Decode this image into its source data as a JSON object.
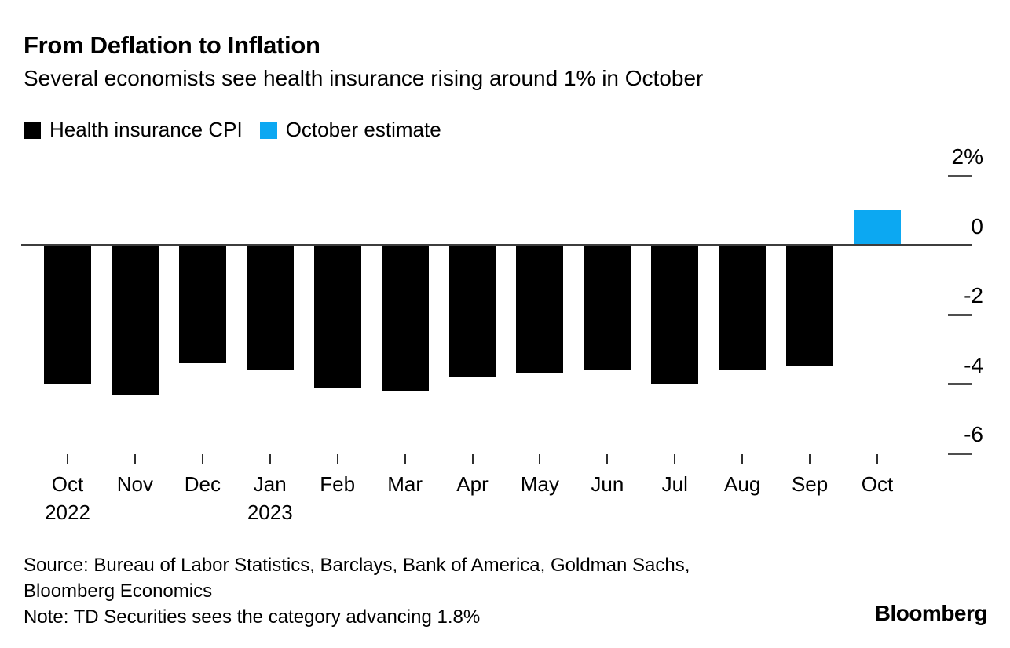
{
  "header": {
    "title": "From Deflation to Inflation",
    "subtitle": "Several economists see health insurance rising around 1% in October"
  },
  "legend": {
    "items": [
      {
        "label": "Health insurance CPI",
        "color": "#000000"
      },
      {
        "label": "October estimate",
        "color": "#0ca8f2"
      }
    ]
  },
  "chart_data": {
    "type": "bar",
    "unit": "percent change, month over month",
    "categories": [
      "Oct 2022",
      "Nov",
      "Dec",
      "Jan 2023",
      "Feb",
      "Mar",
      "Apr",
      "May",
      "Jun",
      "Jul",
      "Aug",
      "Sep",
      "Oct"
    ],
    "series": [
      {
        "name": "Health insurance CPI",
        "color": "#000000",
        "values": [
          -4.0,
          -4.3,
          -3.4,
          -3.6,
          -4.1,
          -4.2,
          -3.8,
          -3.7,
          -3.6,
          -4.0,
          -3.6,
          -3.5,
          null
        ]
      },
      {
        "name": "October estimate",
        "color": "#0ca8f2",
        "values": [
          null,
          null,
          null,
          null,
          null,
          null,
          null,
          null,
          null,
          null,
          null,
          null,
          1.0
        ]
      }
    ],
    "ylim": [
      -6.6,
      2.4
    ],
    "yticks": [
      {
        "label": "2%",
        "value": 2
      },
      {
        "label": "0",
        "value": 0
      },
      {
        "label": "-2",
        "value": -2
      },
      {
        "label": "-4",
        "value": -4
      },
      {
        "label": "-6",
        "value": -6
      }
    ],
    "x_axis": {
      "months": [
        "Oct",
        "Nov",
        "Dec",
        "Jan",
        "Feb",
        "Mar",
        "Apr",
        "May",
        "Jun",
        "Jul",
        "Aug",
        "Sep",
        "Oct"
      ],
      "year_labels": [
        {
          "index": 0,
          "label": "2022"
        },
        {
          "index": 3,
          "label": "2023"
        }
      ]
    },
    "grid": "off",
    "legend_position": "top-left",
    "y_axis_position": "right"
  },
  "footer": {
    "source_lines": [
      "Source: Bureau of Labor Statistics, Barclays, Bank of America, Goldman Sachs,",
      "Bloomberg Economics"
    ],
    "note": "Note: TD Securities sees the category advancing 1.8%",
    "brand": "Bloomberg"
  }
}
